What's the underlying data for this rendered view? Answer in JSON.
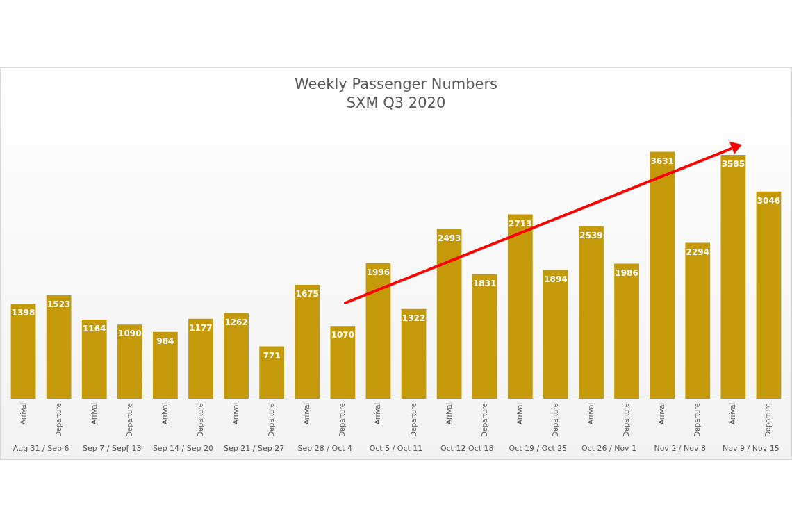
{
  "chart_data": {
    "type": "bar",
    "title": "Weekly Passenger Numbers",
    "subtitle": "SXM Q3 2020",
    "categories": [
      "Arrival",
      "Departure",
      "Arrival",
      "Departure",
      "Arrival",
      "Departure",
      "Arrival",
      "Departure",
      "Arrival",
      "Departure",
      "Arrival",
      "Departure",
      "Arrival",
      "Departure",
      "Arrival",
      "Departure",
      "Arrival",
      "Departure",
      "Arrival",
      "Departure",
      "Arrival",
      "Departure"
    ],
    "values": [
      1398,
      1523,
      1164,
      1090,
      984,
      1177,
      1262,
      771,
      1675,
      1070,
      1996,
      1322,
      2493,
      1831,
      2713,
      1894,
      2539,
      1986,
      3631,
      2294,
      3585,
      3046
    ],
    "color": "#c59a0a",
    "data_labels": true,
    "grid": false,
    "legend": false,
    "annotations": [
      "Aug 31 / Sep 6",
      "Sep 7 / Sep[ 13",
      "Sep 14 / Sep 20",
      "Sep 21 / Sep 27",
      "Sep 28 / Oct 4",
      "Oct 5 / Oct 11",
      "Oct 12 Oct 18",
      "Oct 19 / Oct 25",
      "Oct 26 / Nov 1",
      "Nov 2 / Nov 8",
      "Nov 9 / Nov 15"
    ]
  }
}
